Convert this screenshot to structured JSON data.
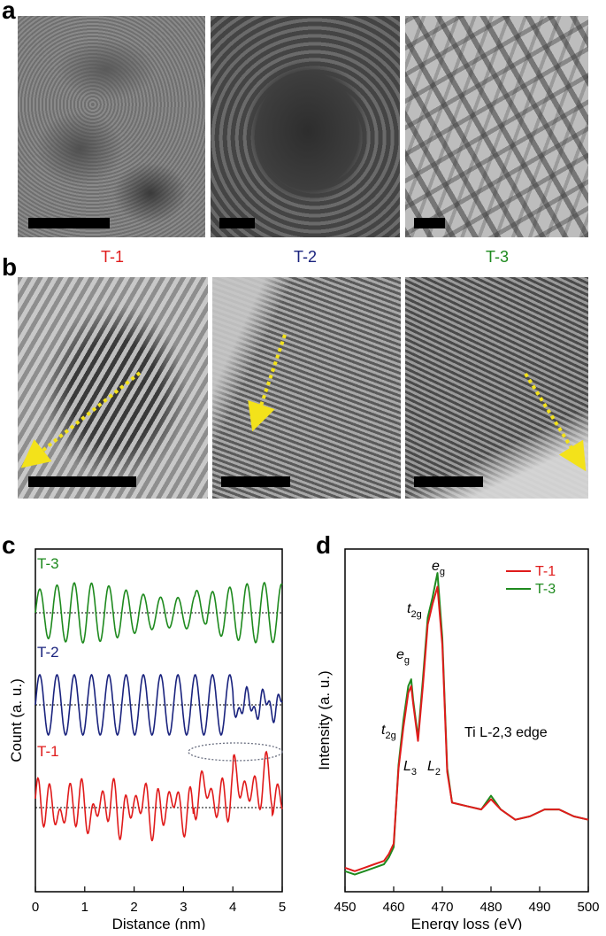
{
  "panels": {
    "a": "a",
    "b": "b",
    "c": "c",
    "d": "d"
  },
  "samples": [
    {
      "name": "T-1",
      "color": "#e01b1b"
    },
    {
      "name": "T-2",
      "color": "#1a237e"
    },
    {
      "name": "T-3",
      "color": "#1e8a1e"
    }
  ],
  "chart_data": [
    {
      "type": "line",
      "xlabel": "Distance (nm)",
      "ylabel": "Count (a. u.)",
      "xlim": [
        0,
        5
      ],
      "xticks": [
        "0",
        "1",
        "2",
        "3",
        "4",
        "5"
      ],
      "series": [
        {
          "name": "T-3",
          "color": "#1e8a1e",
          "period_nm": 0.35
        },
        {
          "name": "T-2",
          "color": "#1a237e",
          "period_nm": 0.35
        },
        {
          "name": "T-1",
          "color": "#e01b1b",
          "period_nm": 0.22
        }
      ]
    },
    {
      "type": "line",
      "xlabel": "Energy loss (eV)",
      "ylabel": "Intensity (a. u.)",
      "xlim": [
        450,
        500
      ],
      "xticks": [
        "450",
        "460",
        "470",
        "480",
        "490",
        "500"
      ],
      "annotation": "Ti L-2,3 edge",
      "peak_labels": {
        "t2g": "t",
        "t2g_sub": "2g",
        "eg": "e",
        "eg_sub": "g",
        "L3": "L",
        "L3_sub": "3",
        "L2": "L",
        "L2_sub": "2"
      },
      "legend": "top-right",
      "series": [
        {
          "name": "T-1",
          "color": "#e01b1b",
          "x": [
            450,
            452,
            454,
            456,
            458,
            459,
            460,
            461,
            462,
            463,
            463.6,
            464,
            465,
            466,
            467,
            468,
            469,
            470,
            471,
            472,
            475,
            478,
            480,
            482,
            485,
            488,
            491,
            494,
            497,
            500
          ],
          "y": [
            0.07,
            0.06,
            0.07,
            0.08,
            0.09,
            0.11,
            0.14,
            0.36,
            0.48,
            0.58,
            0.6,
            0.55,
            0.44,
            0.6,
            0.78,
            0.84,
            0.89,
            0.72,
            0.35,
            0.26,
            0.25,
            0.24,
            0.27,
            0.24,
            0.21,
            0.22,
            0.24,
            0.24,
            0.22,
            0.21
          ]
        },
        {
          "name": "T-3",
          "color": "#1e8a1e",
          "x": [
            450,
            452,
            454,
            456,
            458,
            459,
            460,
            461,
            462,
            463,
            463.6,
            464,
            465,
            466,
            467,
            468,
            469,
            470,
            471,
            472,
            475,
            478,
            480,
            482,
            485,
            488,
            491,
            494,
            497,
            500
          ],
          "y": [
            0.06,
            0.05,
            0.06,
            0.07,
            0.08,
            0.1,
            0.13,
            0.37,
            0.5,
            0.6,
            0.62,
            0.56,
            0.45,
            0.62,
            0.8,
            0.86,
            0.93,
            0.74,
            0.36,
            0.26,
            0.25,
            0.24,
            0.28,
            0.24,
            0.21,
            0.22,
            0.24,
            0.24,
            0.22,
            0.21
          ]
        }
      ]
    }
  ]
}
